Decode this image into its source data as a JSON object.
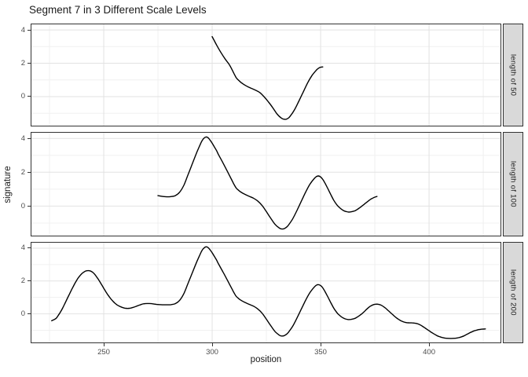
{
  "chart_data": {
    "type": "line",
    "title": "Segment 7 in 3 Different Scale Levels",
    "xlabel": "position",
    "ylabel": "signature",
    "legend": "none",
    "grid": "on",
    "xlim": [
      216.3,
      433.3
    ],
    "ylim": [
      -1.79,
      4.38
    ],
    "x_ticks": [
      250,
      300,
      350,
      400
    ],
    "x_tick_labels": [
      "250",
      "300",
      "350",
      "400"
    ],
    "x_minor_ticks": [
      225,
      275,
      325,
      375,
      425
    ],
    "y_ticks": [
      4,
      2,
      0
    ],
    "y_tick_labels": [
      "4",
      "2",
      "0"
    ],
    "y_minor_ticks": [
      3,
      1,
      -1
    ],
    "facets": [
      {
        "label": "length of 50",
        "series": [
          [
            300,
            3.6
          ],
          [
            302,
            3.1
          ],
          [
            304,
            2.65
          ],
          [
            306,
            2.25
          ],
          [
            308,
            1.9
          ],
          [
            310,
            1.4
          ],
          [
            311,
            1.15
          ],
          [
            312,
            1.0
          ],
          [
            313,
            0.88
          ],
          [
            314,
            0.78
          ],
          [
            316,
            0.62
          ],
          [
            318,
            0.5
          ],
          [
            320,
            0.38
          ],
          [
            322,
            0.24
          ],
          [
            324,
            -0.02
          ],
          [
            326,
            -0.33
          ],
          [
            328,
            -0.68
          ],
          [
            330,
            -1.06
          ],
          [
            332,
            -1.3
          ],
          [
            333,
            -1.35
          ],
          [
            334,
            -1.36
          ],
          [
            335,
            -1.3
          ],
          [
            336,
            -1.17
          ],
          [
            338,
            -0.78
          ],
          [
            340,
            -0.26
          ],
          [
            342,
            0.28
          ],
          [
            344,
            0.82
          ],
          [
            346,
            1.26
          ],
          [
            348,
            1.58
          ],
          [
            349,
            1.7
          ],
          [
            350,
            1.76
          ],
          [
            351,
            1.78
          ]
        ]
      },
      {
        "label": "length of 100",
        "series": [
          [
            275,
            0.62
          ],
          [
            277,
            0.57
          ],
          [
            279,
            0.55
          ],
          [
            281,
            0.56
          ],
          [
            283,
            0.62
          ],
          [
            285,
            0.82
          ],
          [
            287,
            1.25
          ],
          [
            289,
            1.9
          ],
          [
            291,
            2.55
          ],
          [
            293,
            3.2
          ],
          [
            295,
            3.78
          ],
          [
            296,
            3.98
          ],
          [
            297,
            4.08
          ],
          [
            298,
            4.05
          ],
          [
            299,
            3.9
          ],
          [
            300,
            3.72
          ],
          [
            301,
            3.5
          ],
          [
            302,
            3.28
          ],
          [
            303,
            3.02
          ],
          [
            305,
            2.55
          ],
          [
            307,
            2.05
          ],
          [
            309,
            1.55
          ],
          [
            310,
            1.3
          ],
          [
            311,
            1.08
          ],
          [
            312,
            0.95
          ],
          [
            313,
            0.85
          ],
          [
            315,
            0.7
          ],
          [
            317,
            0.58
          ],
          [
            319,
            0.47
          ],
          [
            321,
            0.3
          ],
          [
            323,
            0.04
          ],
          [
            325,
            -0.33
          ],
          [
            327,
            -0.72
          ],
          [
            329,
            -1.08
          ],
          [
            331,
            -1.3
          ],
          [
            332,
            -1.35
          ],
          [
            333,
            -1.34
          ],
          [
            334,
            -1.27
          ],
          [
            335,
            -1.15
          ],
          [
            337,
            -0.78
          ],
          [
            339,
            -0.28
          ],
          [
            341,
            0.26
          ],
          [
            343,
            0.8
          ],
          [
            345,
            1.28
          ],
          [
            347,
            1.62
          ],
          [
            348,
            1.74
          ],
          [
            349,
            1.78
          ],
          [
            350,
            1.72
          ],
          [
            351,
            1.58
          ],
          [
            352,
            1.36
          ],
          [
            353,
            1.12
          ],
          [
            354,
            0.86
          ],
          [
            355,
            0.6
          ],
          [
            356,
            0.36
          ],
          [
            357,
            0.16
          ],
          [
            358,
            0.0
          ],
          [
            359,
            -0.12
          ],
          [
            360,
            -0.22
          ],
          [
            361,
            -0.29
          ],
          [
            362,
            -0.33
          ],
          [
            363,
            -0.35
          ],
          [
            364,
            -0.34
          ],
          [
            365,
            -0.31
          ],
          [
            366,
            -0.27
          ],
          [
            367,
            -0.19
          ],
          [
            368,
            -0.1
          ],
          [
            369,
            0.0
          ],
          [
            370,
            0.1
          ],
          [
            371,
            0.2
          ],
          [
            372,
            0.3
          ],
          [
            373,
            0.4
          ],
          [
            374,
            0.47
          ],
          [
            375,
            0.53
          ],
          [
            376,
            0.57
          ]
        ]
      },
      {
        "label": "length of 200",
        "series": [
          [
            226,
            -0.42
          ],
          [
            228,
            -0.28
          ],
          [
            229,
            -0.1
          ],
          [
            230,
            0.1
          ],
          [
            231,
            0.34
          ],
          [
            232,
            0.6
          ],
          [
            233,
            0.88
          ],
          [
            234,
            1.15
          ],
          [
            235,
            1.42
          ],
          [
            236,
            1.68
          ],
          [
            237,
            1.92
          ],
          [
            238,
            2.14
          ],
          [
            239,
            2.32
          ],
          [
            240,
            2.46
          ],
          [
            241,
            2.56
          ],
          [
            242,
            2.62
          ],
          [
            243,
            2.63
          ],
          [
            244,
            2.6
          ],
          [
            245,
            2.52
          ],
          [
            246,
            2.38
          ],
          [
            247,
            2.2
          ],
          [
            248,
            2.0
          ],
          [
            249,
            1.78
          ],
          [
            250,
            1.56
          ],
          [
            251,
            1.34
          ],
          [
            252,
            1.14
          ],
          [
            253,
            0.96
          ],
          [
            254,
            0.8
          ],
          [
            255,
            0.67
          ],
          [
            256,
            0.56
          ],
          [
            257,
            0.48
          ],
          [
            258,
            0.42
          ],
          [
            259,
            0.37
          ],
          [
            260,
            0.34
          ],
          [
            261,
            0.33
          ],
          [
            262,
            0.34
          ],
          [
            263,
            0.37
          ],
          [
            264,
            0.41
          ],
          [
            265,
            0.46
          ],
          [
            266,
            0.51
          ],
          [
            267,
            0.56
          ],
          [
            268,
            0.6
          ],
          [
            269,
            0.62
          ],
          [
            270,
            0.63
          ],
          [
            271,
            0.63
          ],
          [
            272,
            0.62
          ],
          [
            273,
            0.6
          ],
          [
            274,
            0.58
          ],
          [
            275,
            0.57
          ],
          [
            277,
            0.55
          ],
          [
            279,
            0.55
          ],
          [
            281,
            0.56
          ],
          [
            283,
            0.62
          ],
          [
            285,
            0.82
          ],
          [
            287,
            1.25
          ],
          [
            289,
            1.9
          ],
          [
            291,
            2.55
          ],
          [
            293,
            3.2
          ],
          [
            295,
            3.78
          ],
          [
            296,
            3.98
          ],
          [
            297,
            4.08
          ],
          [
            298,
            4.05
          ],
          [
            299,
            3.9
          ],
          [
            300,
            3.72
          ],
          [
            301,
            3.5
          ],
          [
            302,
            3.28
          ],
          [
            303,
            3.02
          ],
          [
            305,
            2.55
          ],
          [
            307,
            2.05
          ],
          [
            309,
            1.55
          ],
          [
            310,
            1.3
          ],
          [
            311,
            1.08
          ],
          [
            312,
            0.95
          ],
          [
            313,
            0.85
          ],
          [
            315,
            0.7
          ],
          [
            317,
            0.58
          ],
          [
            319,
            0.47
          ],
          [
            321,
            0.3
          ],
          [
            323,
            0.04
          ],
          [
            325,
            -0.33
          ],
          [
            327,
            -0.72
          ],
          [
            329,
            -1.08
          ],
          [
            331,
            -1.3
          ],
          [
            332,
            -1.35
          ],
          [
            333,
            -1.34
          ],
          [
            334,
            -1.27
          ],
          [
            335,
            -1.15
          ],
          [
            337,
            -0.78
          ],
          [
            339,
            -0.28
          ],
          [
            341,
            0.26
          ],
          [
            343,
            0.8
          ],
          [
            345,
            1.28
          ],
          [
            347,
            1.62
          ],
          [
            348,
            1.74
          ],
          [
            349,
            1.78
          ],
          [
            350,
            1.72
          ],
          [
            351,
            1.58
          ],
          [
            352,
            1.36
          ],
          [
            353,
            1.12
          ],
          [
            354,
            0.86
          ],
          [
            355,
            0.6
          ],
          [
            356,
            0.36
          ],
          [
            357,
            0.16
          ],
          [
            358,
            0.0
          ],
          [
            359,
            -0.12
          ],
          [
            360,
            -0.22
          ],
          [
            361,
            -0.29
          ],
          [
            362,
            -0.33
          ],
          [
            363,
            -0.35
          ],
          [
            364,
            -0.34
          ],
          [
            365,
            -0.31
          ],
          [
            366,
            -0.27
          ],
          [
            367,
            -0.19
          ],
          [
            368,
            -0.1
          ],
          [
            369,
            0.0
          ],
          [
            370,
            0.12
          ],
          [
            371,
            0.25
          ],
          [
            372,
            0.37
          ],
          [
            373,
            0.47
          ],
          [
            374,
            0.54
          ],
          [
            375,
            0.58
          ],
          [
            376,
            0.59
          ],
          [
            377,
            0.57
          ],
          [
            378,
            0.52
          ],
          [
            379,
            0.44
          ],
          [
            380,
            0.34
          ],
          [
            381,
            0.22
          ],
          [
            382,
            0.1
          ],
          [
            383,
            -0.02
          ],
          [
            384,
            -0.14
          ],
          [
            385,
            -0.25
          ],
          [
            386,
            -0.34
          ],
          [
            387,
            -0.42
          ],
          [
            388,
            -0.48
          ],
          [
            389,
            -0.52
          ],
          [
            390,
            -0.54
          ],
          [
            391,
            -0.55
          ],
          [
            392,
            -0.55
          ],
          [
            393,
            -0.56
          ],
          [
            394,
            -0.58
          ],
          [
            395,
            -0.62
          ],
          [
            396,
            -0.68
          ],
          [
            397,
            -0.76
          ],
          [
            398,
            -0.85
          ],
          [
            399,
            -0.94
          ],
          [
            400,
            -1.03
          ],
          [
            401,
            -1.12
          ],
          [
            402,
            -1.2
          ],
          [
            403,
            -1.28
          ],
          [
            404,
            -1.35
          ],
          [
            405,
            -1.4
          ],
          [
            406,
            -1.44
          ],
          [
            407,
            -1.47
          ],
          [
            408,
            -1.49
          ],
          [
            410,
            -1.5
          ],
          [
            412,
            -1.49
          ],
          [
            413,
            -1.47
          ],
          [
            414,
            -1.44
          ],
          [
            415,
            -1.4
          ],
          [
            416,
            -1.35
          ],
          [
            417,
            -1.28
          ],
          [
            418,
            -1.21
          ],
          [
            419,
            -1.14
          ],
          [
            420,
            -1.08
          ],
          [
            421,
            -1.03
          ],
          [
            422,
            -0.99
          ],
          [
            423,
            -0.96
          ],
          [
            424,
            -0.94
          ],
          [
            425,
            -0.93
          ],
          [
            426,
            -0.92
          ]
        ]
      }
    ],
    "colors": {
      "line": "#000000",
      "panel_background": "#FFFFFF",
      "panel_border": "#333333",
      "grid_major": "#E2E2E2",
      "grid_minor": "#F0F0F0",
      "strip_fill": "#D9D9D9",
      "strip_text": "#1a1a1a",
      "axis_text": "#4d4d4d",
      "tick_mark": "#333333"
    }
  }
}
